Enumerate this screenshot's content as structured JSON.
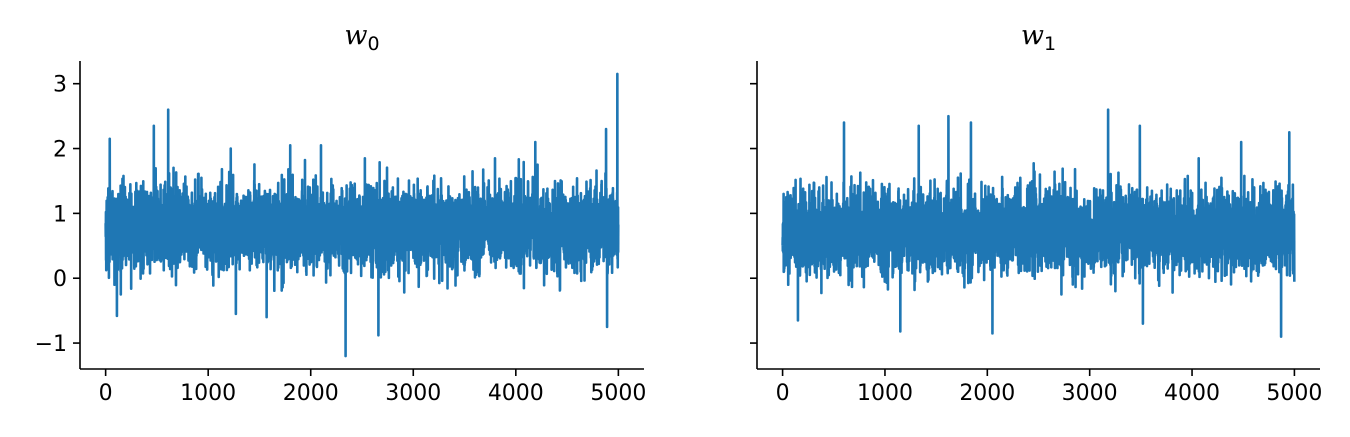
{
  "chart_data": [
    {
      "type": "line",
      "title": "w",
      "title_subscript": "0",
      "xlabel": "",
      "ylabel": "",
      "xlim": [
        -250,
        5250
      ],
      "ylim": [
        -1.4,
        3.35
      ],
      "xticks": [
        0,
        1000,
        2000,
        3000,
        4000,
        5000
      ],
      "xtick_labels": [
        "0",
        "1000",
        "2000",
        "3000",
        "4000",
        "5000"
      ],
      "yticks": [
        -1,
        0,
        1,
        2,
        3
      ],
      "ytick_labels": [
        "−1",
        "0",
        "1",
        "2",
        "3"
      ],
      "show_ytick_labels": true,
      "grid": false,
      "color": "#1f77b4",
      "series": [
        {
          "n_samples": 5000,
          "center": 0.78,
          "typical_range": [
            0.0,
            1.6
          ],
          "spikes": [
            {
              "x": 40,
              "y": 2.15
            },
            {
              "x": 110,
              "y": -0.58
            },
            {
              "x": 470,
              "y": 2.35
            },
            {
              "x": 610,
              "y": 2.6
            },
            {
              "x": 1220,
              "y": 2.0
            },
            {
              "x": 1270,
              "y": -0.55
            },
            {
              "x": 1570,
              "y": -0.6
            },
            {
              "x": 1800,
              "y": 2.05
            },
            {
              "x": 2100,
              "y": 2.05
            },
            {
              "x": 2340,
              "y": -1.2
            },
            {
              "x": 2660,
              "y": -0.88
            },
            {
              "x": 4190,
              "y": 2.1
            },
            {
              "x": 4880,
              "y": 2.3
            },
            {
              "x": 4890,
              "y": -0.75
            },
            {
              "x": 4990,
              "y": 3.15
            }
          ]
        }
      ]
    },
    {
      "type": "line",
      "title": "w",
      "title_subscript": "1",
      "xlabel": "",
      "ylabel": "",
      "xlim": [
        -250,
        5250
      ],
      "ylim": [
        -1.4,
        3.35
      ],
      "xticks": [
        0,
        1000,
        2000,
        3000,
        4000,
        5000
      ],
      "xtick_labels": [
        "0",
        "1000",
        "2000",
        "3000",
        "4000",
        "5000"
      ],
      "yticks": [
        -1,
        0,
        1,
        2,
        3
      ],
      "ytick_labels": [
        "−1",
        "0",
        "1",
        "2",
        "3"
      ],
      "show_ytick_labels": false,
      "grid": false,
      "color": "#1f77b4",
      "series": [
        {
          "n_samples": 5000,
          "center": 0.72,
          "typical_range": [
            0.0,
            1.6
          ],
          "spikes": [
            {
              "x": 150,
              "y": -0.65
            },
            {
              "x": 600,
              "y": 2.4
            },
            {
              "x": 1150,
              "y": -0.82
            },
            {
              "x": 1330,
              "y": 2.35
            },
            {
              "x": 1620,
              "y": 2.5
            },
            {
              "x": 1840,
              "y": 2.4
            },
            {
              "x": 2050,
              "y": -0.85
            },
            {
              "x": 3180,
              "y": 2.6
            },
            {
              "x": 3490,
              "y": 2.35
            },
            {
              "x": 3520,
              "y": -0.7
            },
            {
              "x": 4480,
              "y": 2.1
            },
            {
              "x": 4870,
              "y": -0.9
            },
            {
              "x": 4950,
              "y": 2.25
            }
          ]
        }
      ]
    }
  ]
}
